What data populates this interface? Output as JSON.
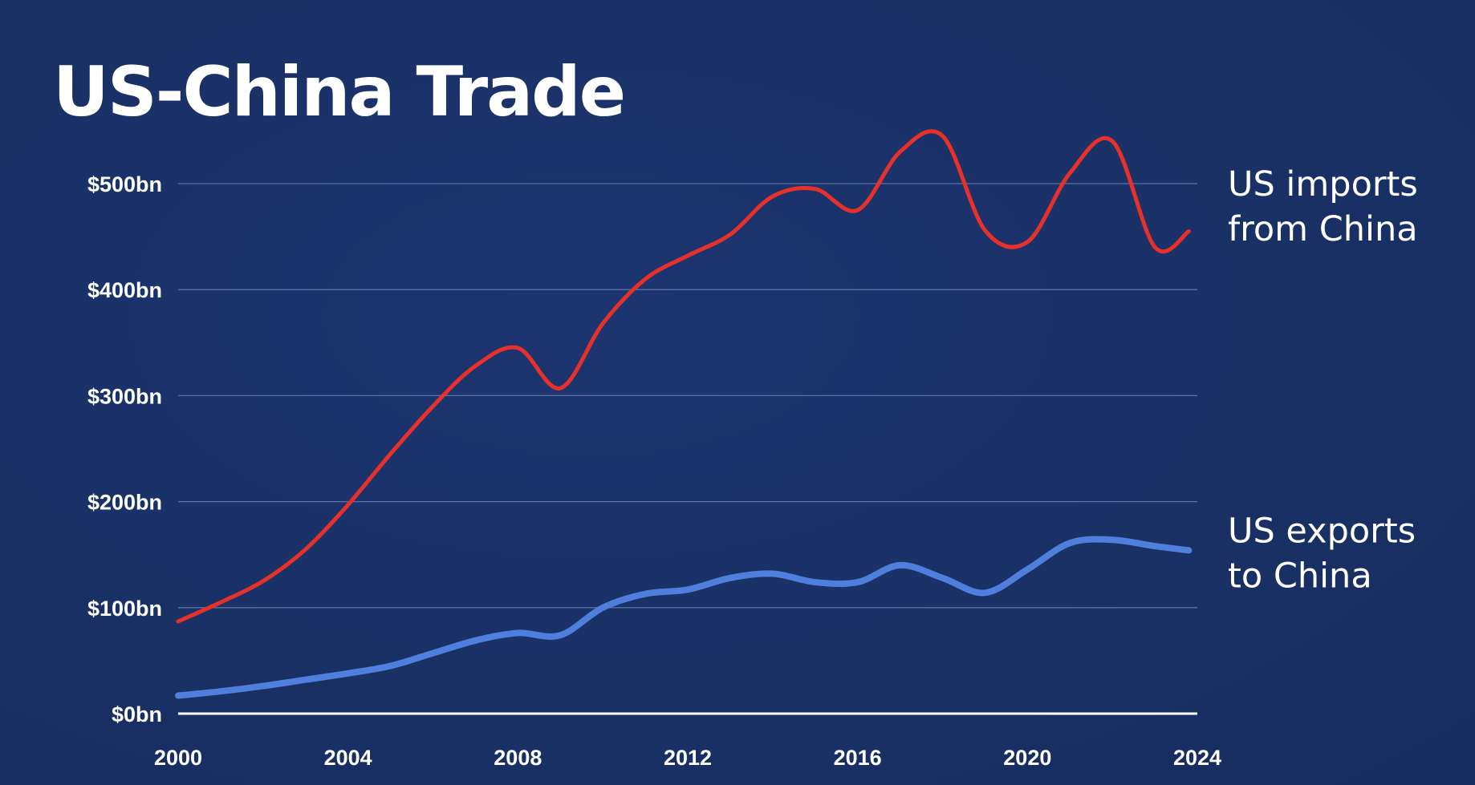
{
  "chart_data": {
    "type": "line",
    "title": "US-China Trade",
    "xlabel": "",
    "ylabel": "",
    "xlim": [
      2000,
      2024
    ],
    "ylim": [
      0,
      500
    ],
    "x_ticks": [
      2000,
      2004,
      2008,
      2012,
      2016,
      2020,
      2024
    ],
    "x_tick_labels": [
      "2000",
      "2004",
      "2008",
      "2012",
      "2016",
      "2020",
      "2024"
    ],
    "y_ticks": [
      0,
      100,
      200,
      300,
      400,
      500
    ],
    "y_tick_labels": [
      "$0bn",
      "$100bn",
      "$200bn",
      "$300bn",
      "$400bn",
      "$500bn"
    ],
    "grid": true,
    "legend": "labels at right end of each line",
    "series": [
      {
        "name": "US imports from China",
        "label_lines": [
          "US imports",
          "from China"
        ],
        "color": "#e8302b",
        "x": [
          2000,
          2001,
          2002,
          2003,
          2004,
          2005,
          2006,
          2007,
          2008,
          2009,
          2010,
          2011,
          2012,
          2013,
          2014,
          2015,
          2016,
          2017,
          2018,
          2019,
          2020,
          2021,
          2022,
          2023,
          2023.8
        ],
        "y": [
          87,
          105,
          125,
          155,
          197,
          245,
          290,
          328,
          345,
          307,
          368,
          410,
          432,
          452,
          488,
          495,
          475,
          530,
          545,
          456,
          445,
          510,
          540,
          440,
          455
        ]
      },
      {
        "name": "US exports to China",
        "label_lines": [
          "US exports",
          "to China"
        ],
        "color": "#4f7fdc",
        "x": [
          2000,
          2001,
          2002,
          2003,
          2004,
          2005,
          2006,
          2007,
          2008,
          2009,
          2010,
          2011,
          2012,
          2013,
          2014,
          2015,
          2016,
          2017,
          2018,
          2019,
          2020,
          2021,
          2022,
          2023,
          2023.8
        ],
        "y": [
          17,
          21,
          26,
          32,
          38,
          45,
          57,
          69,
          76,
          74,
          100,
          113,
          117,
          128,
          132,
          124,
          124,
          140,
          128,
          114,
          136,
          161,
          164,
          158,
          154
        ]
      }
    ]
  }
}
